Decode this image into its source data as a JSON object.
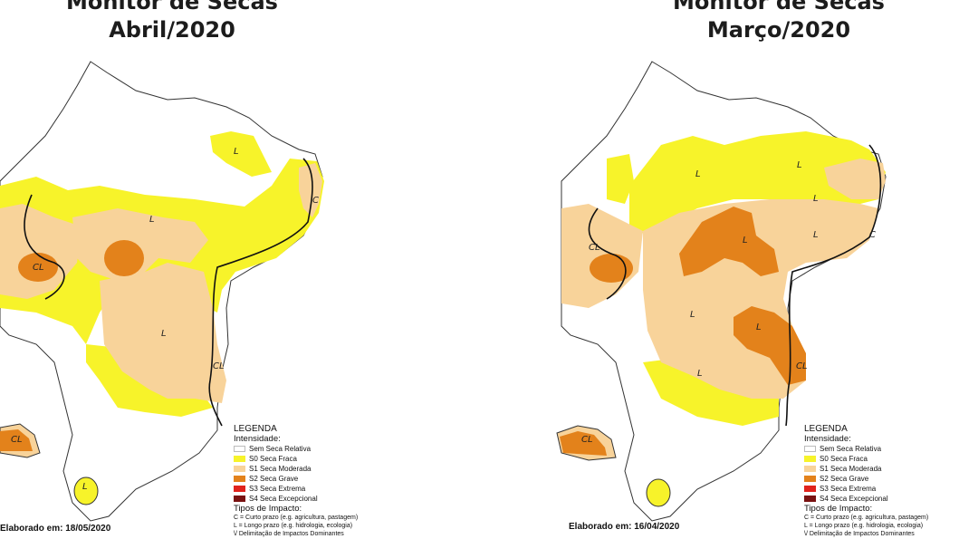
{
  "panels": [
    {
      "title_line1": "Monitor de Secas",
      "title_line2": "Abril/2020",
      "elaborado": "Elaborado em: 18/05/2020"
    },
    {
      "title_line1": "Monitor de Secas",
      "title_line2": "Março/2020",
      "elaborado": "Elaborado em: 16/04/2020"
    }
  ],
  "legend": {
    "title": "LEGENDA",
    "intensity_label": "Intensidade:",
    "items": [
      {
        "label": "Sem Seca Relativa",
        "color": "#ffffff"
      },
      {
        "label": "S0 Seca Fraca",
        "color": "#f7f32a"
      },
      {
        "label": "S1 Seca Moderada",
        "color": "#f8d39a"
      },
      {
        "label": "S2 Seca Grave",
        "color": "#e3821b"
      },
      {
        "label": "S3 Seca Extrema",
        "color": "#e0231c"
      },
      {
        "label": "S4 Seca Excepcional",
        "color": "#7a1212"
      }
    ],
    "impact_label": "Tipos de Impacto:",
    "impact_lines": [
      "C = Curto prazo (e.g. agricultura, pastagem)",
      "L = Longo prazo (e.g. hidrologia, ecologia)",
      "\\/ Delimitação de Impactos Dominantes"
    ]
  },
  "region_labels": {
    "left": [
      "L",
      "L",
      "CL",
      "L",
      "CL",
      "C",
      "CL",
      "L"
    ],
    "right": [
      "L",
      "L",
      "L",
      "L",
      "CL",
      "L",
      "L",
      "L",
      "CL",
      "C",
      "CL",
      "L"
    ]
  }
}
